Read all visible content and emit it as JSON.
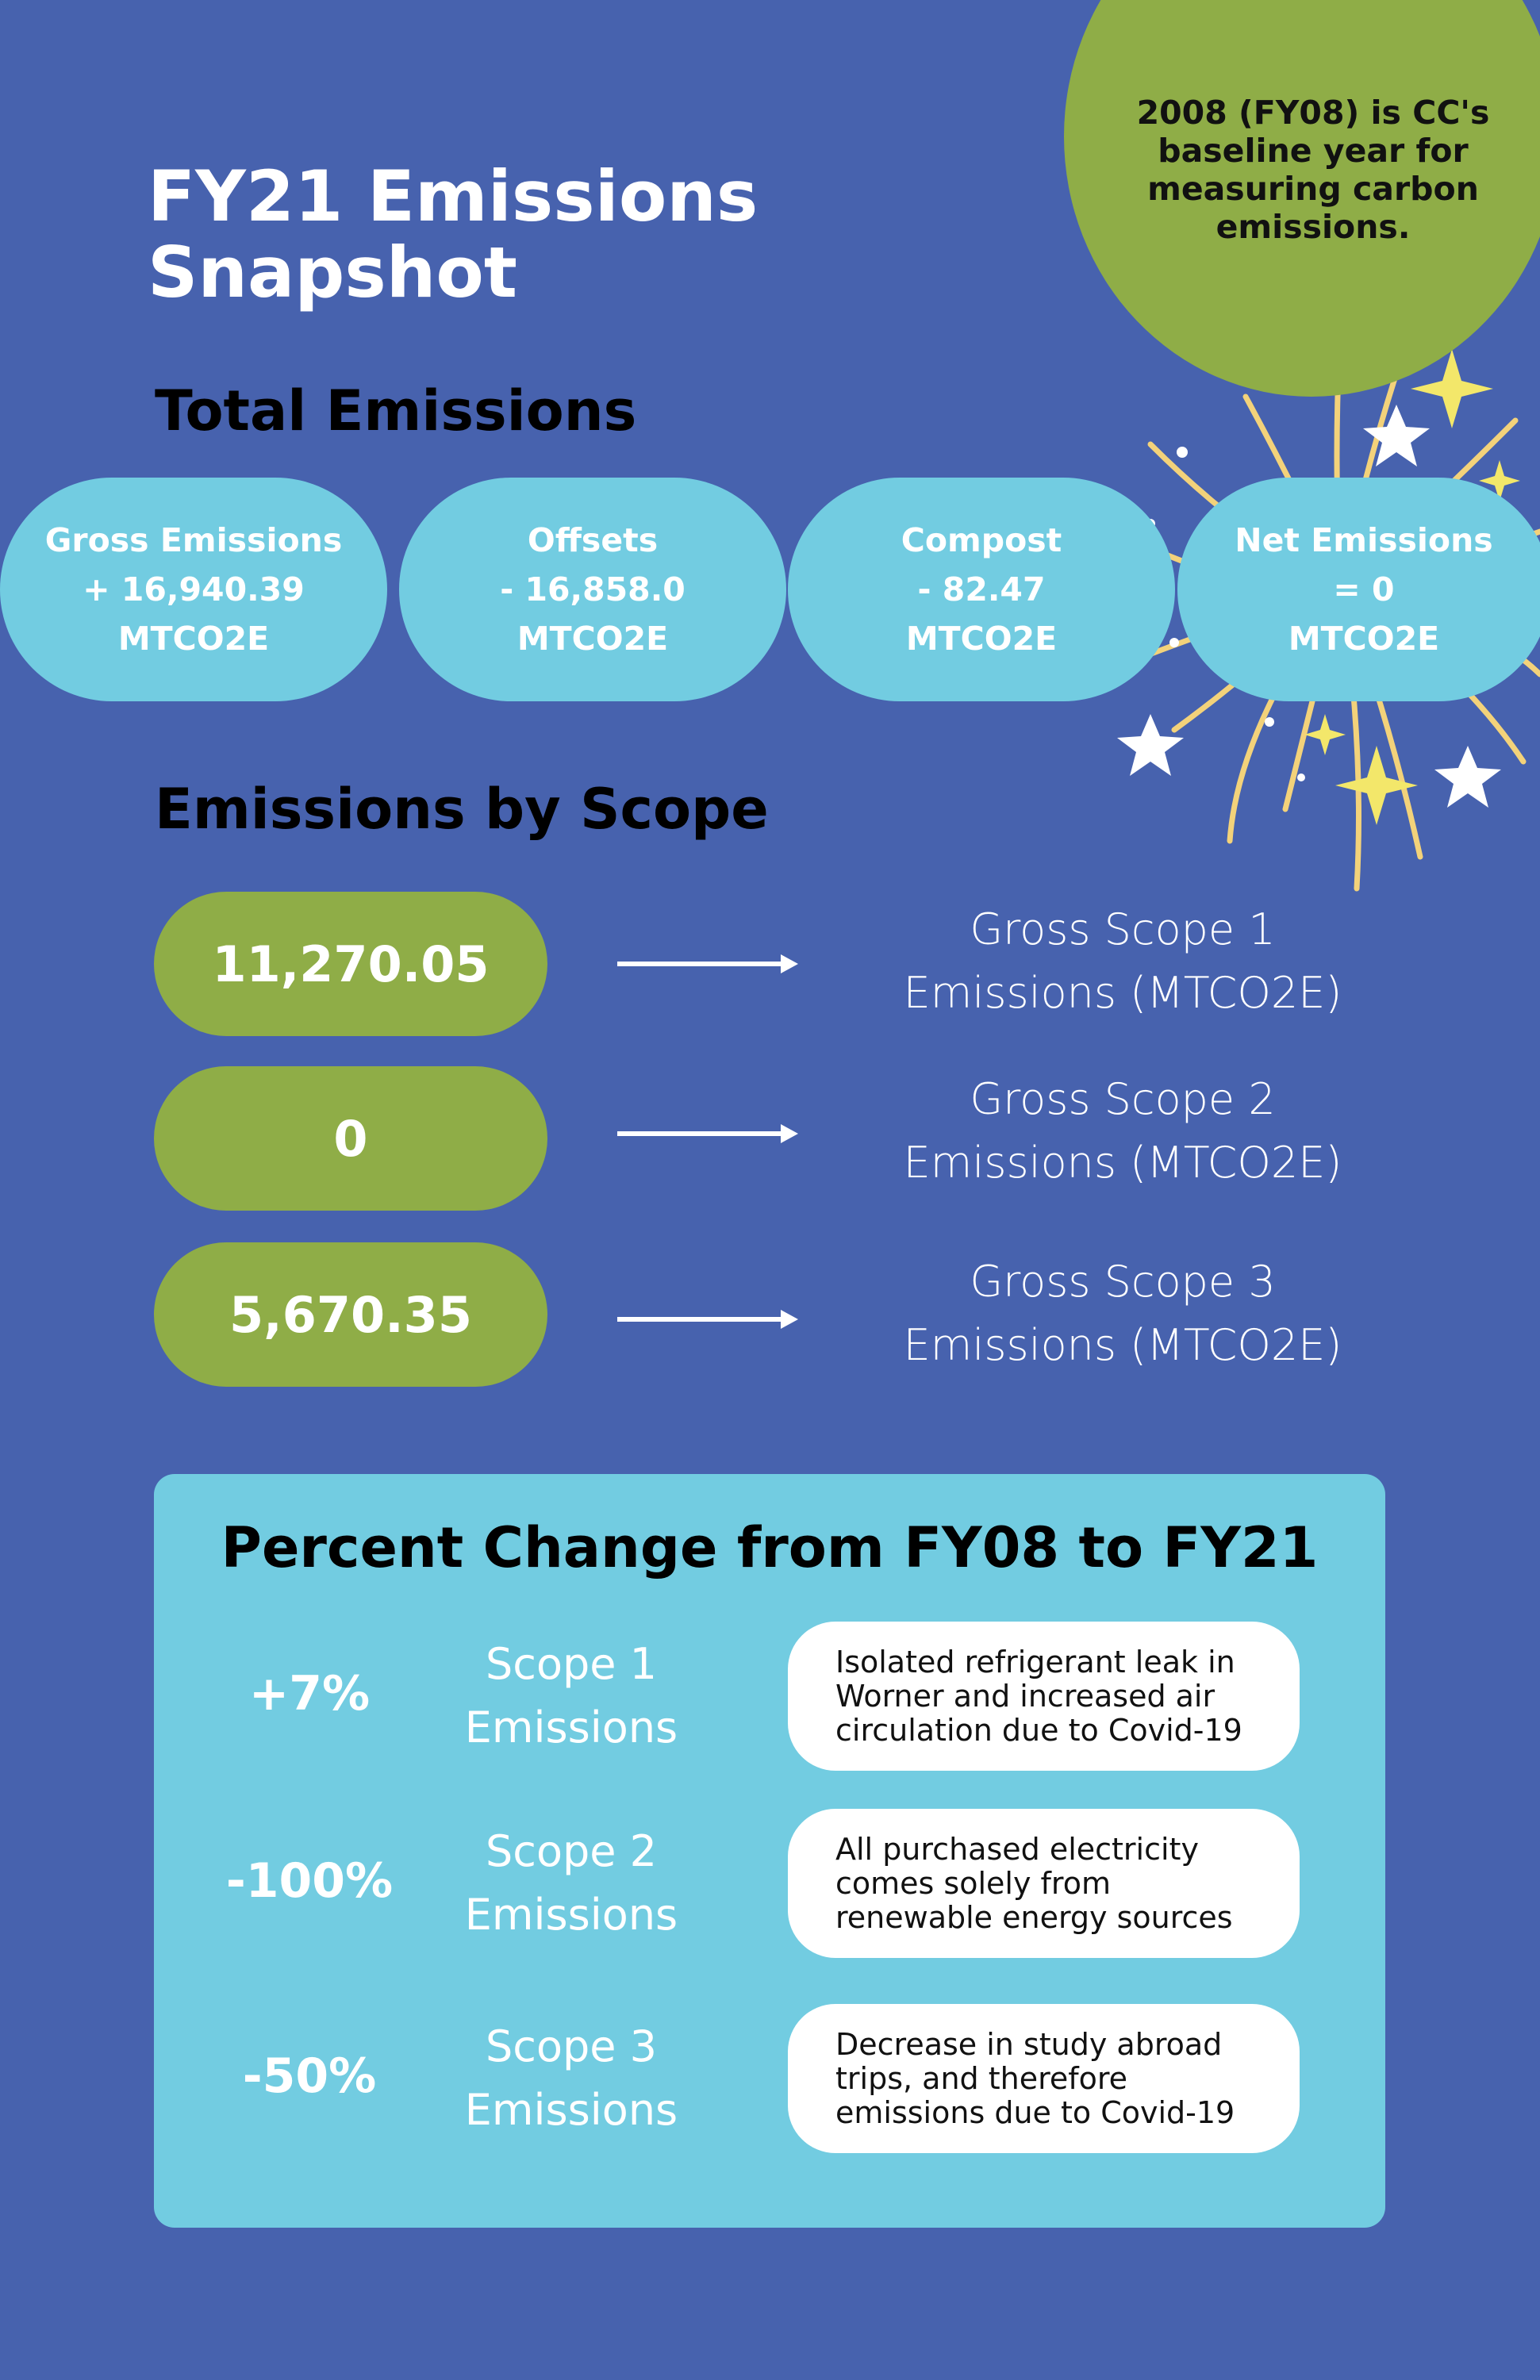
{
  "baseline_note": "2008 (FY08) is CC's baseline year for measuring carbon emissions.",
  "title": "FY21 Emissions\nSnapshot",
  "total_title": "Total Emissions",
  "totals": [
    {
      "label": "Gross Emissions",
      "value": "+ 16,940.39",
      "unit": "MTCO2E"
    },
    {
      "label": "Offsets",
      "value": "- 16,858.0",
      "unit": "MTCO2E"
    },
    {
      "label": "Compost",
      "value": "- 82.47",
      "unit": "MTCO2E"
    },
    {
      "label": "Net Emissions",
      "value": "= 0",
      "unit": "MTCO2E"
    }
  ],
  "scope_title": "Emissions by Scope",
  "scopes": [
    {
      "value": "11,270.05",
      "line1": "Gross Scope 1",
      "line2": "Emissions (MTCO2E)"
    },
    {
      "value": "0",
      "line1": "Gross Scope 2",
      "line2": "Emissions (MTCO2E)"
    },
    {
      "value": "5,670.35",
      "line1": "Gross Scope 3",
      "line2": "Emissions (MTCO2E)"
    }
  ],
  "change_title": "Percent Change from FY08 to FY21",
  "changes": [
    {
      "pct": "+7%",
      "line1": "Scope 1",
      "line2": "Emissions",
      "reason": [
        "Isolated refrigerant leak in",
        "Worner and increased air",
        "circulation due to Covid-19"
      ]
    },
    {
      "pct": "-100%",
      "line1": "Scope 2",
      "line2": "Emissions",
      "reason": [
        "All purchased electricity",
        "comes solely from",
        "renewable energy sources"
      ]
    },
    {
      "pct": "-50%",
      "line1": "Scope 3",
      "line2": "Emissions",
      "reason": [
        "Decrease in study abroad",
        "trips, and therefore",
        "emissions due to Covid-19"
      ]
    }
  ],
  "colors": {
    "background": "#4762ae",
    "green": "#8fad47",
    "light_blue": "#72cce1",
    "firework": "#f3d27a"
  }
}
